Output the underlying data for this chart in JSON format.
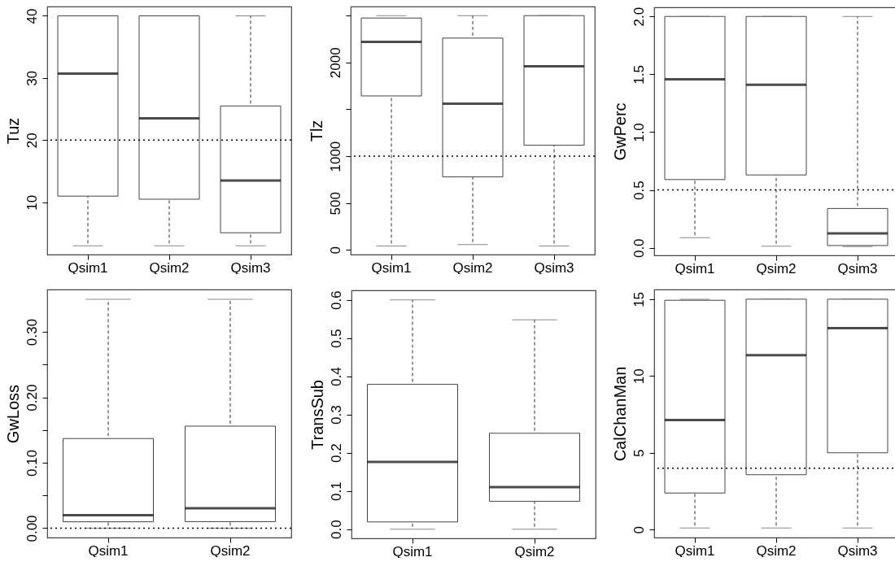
{
  "chart_data": [
    {
      "type": "box",
      "ylabel": "Tuz",
      "categories": [
        "Qsim1",
        "Qsim2",
        "Qsim3"
      ],
      "ylim": [
        1.6,
        41.5
      ],
      "yticks": [
        10,
        20,
        30,
        40
      ],
      "boxes": [
        {
          "low": 3,
          "q1": 11.0,
          "median": 30.7,
          "q3": 40,
          "high": 40
        },
        {
          "low": 3,
          "q1": 10.5,
          "median": 23.5,
          "q3": 40,
          "high": 40
        },
        {
          "low": 3,
          "q1": 5.1,
          "median": 13.5,
          "q3": 25.5,
          "high": 40
        }
      ],
      "ref_lines": [
        {
          "axis": "y",
          "value": 20,
          "line_style": "dotted"
        }
      ]
    },
    {
      "type": "box",
      "ylabel": "Tlz",
      "categories": [
        "Qsim1",
        "Qsim2",
        "Qsim3"
      ],
      "ylim": [
        -49,
        2597
      ],
      "yticks": [
        0,
        500,
        1000,
        {
          "value": 1500,
          "label": null
        },
        2000,
        {
          "value": 2500,
          "label": null
        }
      ],
      "boxes": [
        {
          "low": 43,
          "q1": 1643,
          "median": 2220,
          "q3": 2474,
          "high": 2500
        },
        {
          "low": 57,
          "q1": 780,
          "median": 1560,
          "q3": 2260,
          "high": 2500
        },
        {
          "low": 43,
          "q1": 1117,
          "median": 1960,
          "q3": 2500,
          "high": 2500
        }
      ],
      "ref_lines": [
        {
          "axis": "y",
          "value": 1000,
          "line_style": "dotted"
        }
      ]
    },
    {
      "type": "box",
      "ylabel": "GwPerc",
      "categories": [
        "Qsim1",
        "Qsim2",
        "Qsim3"
      ],
      "ylim": [
        -0.065,
        2.079
      ],
      "yticks": [
        {
          "value": 0,
          "label": "0.0"
        },
        0.5,
        {
          "value": 1,
          "label": "1.0"
        },
        1.5,
        {
          "value": 2,
          "label": "2.0"
        }
      ],
      "boxes": [
        {
          "low": 0.088,
          "q1": 0.59,
          "median": 1.457,
          "q3": 2.0,
          "high": 2.0
        },
        {
          "low": 0.014,
          "q1": 0.63,
          "median": 1.41,
          "q3": 2.0,
          "high": 2.0
        },
        {
          "low": 0.01,
          "q1": 0.02,
          "median": 0.125,
          "q3": 0.34,
          "high": 2.0
        }
      ],
      "ref_lines": [
        {
          "axis": "y",
          "value": 0.5,
          "line_style": "dotted"
        }
      ]
    },
    {
      "type": "box",
      "ylabel": "GwLoss",
      "categories": [
        "Qsim1",
        "Qsim2"
      ],
      "ylim": [
        -0.0143,
        0.3648
      ],
      "yticks": [
        {
          "value": 0,
          "label": "0.00"
        },
        {
          "value": 0.05,
          "label": null
        },
        {
          "value": 0.1,
          "label": "0.10"
        },
        {
          "value": 0.15,
          "label": null
        },
        {
          "value": 0.2,
          "label": "0.20"
        },
        {
          "value": 0.25,
          "label": null
        },
        {
          "value": 0.3,
          "label": "0.30"
        }
      ],
      "boxes": [
        {
          "low": 0,
          "q1": 0.0098,
          "median": 0.02,
          "q3": 0.137,
          "high": 0.35
        },
        {
          "low": 0,
          "q1": 0.01,
          "median": 0.0305,
          "q3": 0.156,
          "high": 0.35
        }
      ],
      "ref_lines": [
        {
          "axis": "y",
          "value": 0,
          "line_style": "dotted"
        }
      ]
    },
    {
      "type": "box",
      "ylabel": "TransSub",
      "categories": [
        "Qsim1",
        "Qsim2"
      ],
      "ylim": [
        -0.024,
        0.625
      ],
      "yticks": [
        {
          "value": 0,
          "label": "0.0"
        },
        0.1,
        0.2,
        0.3,
        0.4,
        0.5,
        0.6
      ],
      "boxes": [
        {
          "low": 0,
          "q1": 0.019,
          "median": 0.176,
          "q3": 0.379,
          "high": 0.6
        },
        {
          "low": 0,
          "q1": 0.073,
          "median": 0.11,
          "q3": 0.251,
          "high": 0.548
        }
      ]
    },
    {
      "type": "box",
      "ylabel": "CalChanMan",
      "categories": [
        "Qsim1",
        "Qsim2",
        "Qsim3"
      ],
      "ylim": [
        -0.52,
        15.63
      ],
      "yticks": [
        0,
        5,
        10,
        15
      ],
      "boxes": [
        {
          "low": 0.1,
          "q1": 2.38,
          "median": 7.13,
          "q3": 14.93,
          "high": 15
        },
        {
          "low": 0.1,
          "q1": 3.57,
          "median": 11.36,
          "q3": 15,
          "high": 15
        },
        {
          "low": 0.1,
          "q1": 5.0,
          "median": 13.11,
          "q3": 15,
          "high": 15
        }
      ],
      "ref_lines": [
        {
          "axis": "y",
          "value": 4,
          "line_style": "dotted"
        }
      ]
    }
  ]
}
